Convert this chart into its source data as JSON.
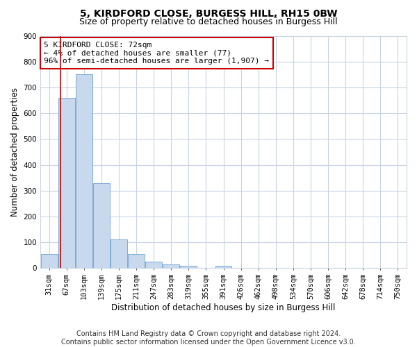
{
  "title": "5, KIRDFORD CLOSE, BURGESS HILL, RH15 0BW",
  "subtitle": "Size of property relative to detached houses in Burgess Hill",
  "xlabel": "Distribution of detached houses by size in Burgess Hill",
  "ylabel": "Number of detached properties",
  "footer_line1": "Contains HM Land Registry data © Crown copyright and database right 2024.",
  "footer_line2": "Contains public sector information licensed under the Open Government Licence v3.0.",
  "bar_labels": [
    "31sqm",
    "67sqm",
    "103sqm",
    "139sqm",
    "175sqm",
    "211sqm",
    "247sqm",
    "283sqm",
    "319sqm",
    "355sqm",
    "391sqm",
    "426sqm",
    "462sqm",
    "498sqm",
    "534sqm",
    "570sqm",
    "606sqm",
    "642sqm",
    "678sqm",
    "714sqm",
    "750sqm"
  ],
  "bar_values": [
    55,
    660,
    750,
    330,
    110,
    55,
    25,
    15,
    10,
    0,
    10,
    0,
    0,
    0,
    0,
    0,
    0,
    0,
    0,
    0,
    0
  ],
  "bar_color": "#c9d9ed",
  "bar_edgecolor": "#7aacd6",
  "bar_width": 0.95,
  "ylim": [
    0,
    900
  ],
  "yticks": [
    0,
    100,
    200,
    300,
    400,
    500,
    600,
    700,
    800,
    900
  ],
  "property_line_color": "#cc0000",
  "annotation_text": "5 KIRDFORD CLOSE: 72sqm\n← 4% of detached houses are smaller (77)\n96% of semi-detached houses are larger (1,907) →",
  "annotation_box_edgecolor": "#cc0000",
  "annotation_box_facecolor": "#ffffff",
  "bg_color": "#ffffff",
  "grid_color": "#c8d4e3",
  "title_fontsize": 10,
  "subtitle_fontsize": 9,
  "axis_label_fontsize": 8.5,
  "tick_fontsize": 7.5,
  "annotation_fontsize": 8,
  "footer_fontsize": 7
}
